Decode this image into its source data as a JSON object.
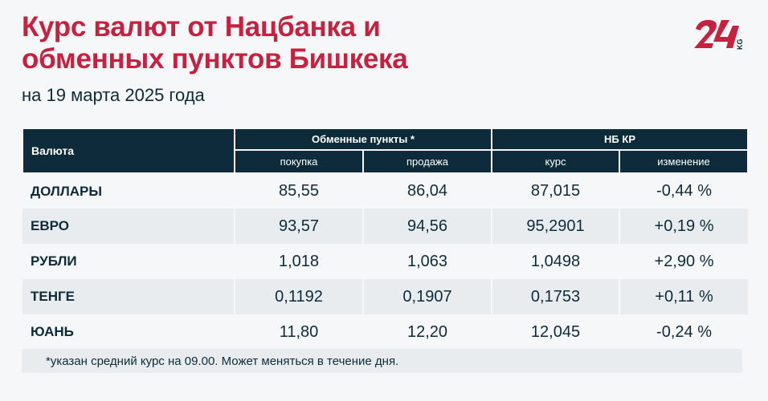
{
  "header": {
    "title_line1": "Курс валют от Нацбанка и",
    "title_line2": "обменных пунктов Бишкека",
    "subtitle": "на 19 марта 2025 года",
    "logo_text": "24 KG"
  },
  "colors": {
    "accent": "#c8203f",
    "header_bg": "#0d2b3a",
    "alt_row": "#e9ecee"
  },
  "table": {
    "col_currency": "Валюта",
    "group_exchange": "Обменные пункты *",
    "group_nb": "НБ КР",
    "sub_buy": "покупка",
    "sub_sell": "продажа",
    "sub_rate": "курс",
    "sub_change": "изменение",
    "rows": [
      {
        "name": "ДОЛЛАРЫ",
        "buy": "85,55",
        "sell": "86,04",
        "rate": "87,015",
        "change": "-0,44 %"
      },
      {
        "name": "ЕВРО",
        "buy": "93,57",
        "sell": "94,56",
        "rate": "95,2901",
        "change": "+0,19 %"
      },
      {
        "name": "РУБЛИ",
        "buy": "1,018",
        "sell": "1,063",
        "rate": "1,0498",
        "change": "+2,90 %"
      },
      {
        "name": "ТЕНГЕ",
        "buy": "0,1192",
        "sell": "0,1907",
        "rate": "0,1753",
        "change": "+0,11 %"
      },
      {
        "name": "ЮАНЬ",
        "buy": "11,80",
        "sell": "12,20",
        "rate": "12,045",
        "change": "-0,24 %"
      }
    ]
  },
  "footnote": "*указан средний курс на 09.00. Может меняться в течение дня."
}
